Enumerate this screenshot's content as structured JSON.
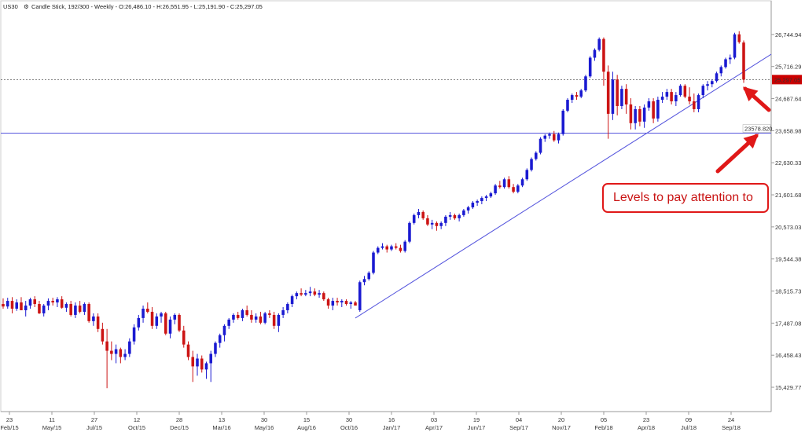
{
  "header": {
    "symbol": "US30",
    "details": "Candle Stick, 192/300 - Weekly - O:26,486.10 - H:26,551.95 - L:25,191.90 - C:25,297.05"
  },
  "colors": {
    "up": "#1a1ad1",
    "down": "#cc1414",
    "line": "#5555dd",
    "price_tag": "#cc0000",
    "callout": "#e01818"
  },
  "chart_data": {
    "type": "candlestick",
    "symbol": "US30",
    "timeframe": "Weekly",
    "ylim": [
      14700,
      27800
    ],
    "y_ticks": [
      "26,744.94",
      "25,716.29",
      "24,687.64",
      "23,658.98",
      "22,630.33",
      "21,601.68",
      "20,573.03",
      "19,544.38",
      "18,515.73",
      "17,487.08",
      "16,458.43",
      "15,429.77"
    ],
    "x_ticks": [
      {
        "day": "23",
        "month": "Feb/15"
      },
      {
        "day": "11",
        "month": "May/15"
      },
      {
        "day": "27",
        "month": "Jul/15"
      },
      {
        "day": "12",
        "month": "Oct/15"
      },
      {
        "day": "28",
        "month": "Dec/15"
      },
      {
        "day": "13",
        "month": "Mar/16"
      },
      {
        "day": "30",
        "month": "May/16"
      },
      {
        "day": "15",
        "month": "Aug/16"
      },
      {
        "day": "30",
        "month": "Oct/16"
      },
      {
        "day": "16",
        "month": "Jan/17"
      },
      {
        "day": "03",
        "month": "Apr/17"
      },
      {
        "day": "19",
        "month": "Jun/17"
      },
      {
        "day": "04",
        "month": "Sep/17"
      },
      {
        "day": "20",
        "month": "Nov/17"
      },
      {
        "day": "05",
        "month": "Feb/18"
      },
      {
        "day": "23",
        "month": "Apr/18"
      },
      {
        "day": "09",
        "month": "Jul/18"
      },
      {
        "day": "24",
        "month": "Sep/18"
      }
    ],
    "last_price": {
      "value": 25297.05,
      "label": "25,297.05"
    },
    "horizontal_level": {
      "value": 23578.82,
      "label": "23578.820"
    },
    "trendline": {
      "from": {
        "x": "Oct/16",
        "y": 17650
      },
      "to": {
        "x": "Sep/18",
        "y": 25550
      }
    },
    "annotation": "Levels to pay attention to",
    "candles": [
      {
        "o": 18100,
        "h": 18280,
        "l": 17950,
        "c": 18020
      },
      {
        "o": 18020,
        "h": 18300,
        "l": 17950,
        "c": 18200
      },
      {
        "o": 18200,
        "h": 18320,
        "l": 17800,
        "c": 17950
      },
      {
        "o": 17950,
        "h": 18250,
        "l": 17880,
        "c": 18150
      },
      {
        "o": 18150,
        "h": 18320,
        "l": 17900,
        "c": 17900
      },
      {
        "o": 17900,
        "h": 18200,
        "l": 17700,
        "c": 18050
      },
      {
        "o": 18050,
        "h": 18300,
        "l": 17950,
        "c": 18250
      },
      {
        "o": 18250,
        "h": 18350,
        "l": 18000,
        "c": 18100
      },
      {
        "o": 18100,
        "h": 18200,
        "l": 17780,
        "c": 17800
      },
      {
        "o": 17800,
        "h": 18100,
        "l": 17700,
        "c": 18050
      },
      {
        "o": 18050,
        "h": 18280,
        "l": 17900,
        "c": 18200
      },
      {
        "o": 18200,
        "h": 18300,
        "l": 18050,
        "c": 18150
      },
      {
        "o": 18150,
        "h": 18320,
        "l": 18000,
        "c": 18250
      },
      {
        "o": 18250,
        "h": 18350,
        "l": 17950,
        "c": 17980
      },
      {
        "o": 17980,
        "h": 18150,
        "l": 17850,
        "c": 18100
      },
      {
        "o": 18100,
        "h": 18200,
        "l": 17700,
        "c": 17750
      },
      {
        "o": 17750,
        "h": 18150,
        "l": 17650,
        "c": 18050
      },
      {
        "o": 18050,
        "h": 18200,
        "l": 17800,
        "c": 17850
      },
      {
        "o": 17850,
        "h": 18150,
        "l": 17750,
        "c": 18100
      },
      {
        "o": 18100,
        "h": 18150,
        "l": 17500,
        "c": 17550
      },
      {
        "o": 17550,
        "h": 17800,
        "l": 17400,
        "c": 17700
      },
      {
        "o": 17700,
        "h": 17800,
        "l": 17200,
        "c": 17300
      },
      {
        "o": 17300,
        "h": 17500,
        "l": 16800,
        "c": 16900
      },
      {
        "o": 16900,
        "h": 17300,
        "l": 15400,
        "c": 16600
      },
      {
        "o": 16600,
        "h": 16900,
        "l": 16300,
        "c": 16500
      },
      {
        "o": 16500,
        "h": 16800,
        "l": 16200,
        "c": 16650
      },
      {
        "o": 16650,
        "h": 16700,
        "l": 16200,
        "c": 16400
      },
      {
        "o": 16400,
        "h": 16650,
        "l": 16300,
        "c": 16500
      },
      {
        "o": 16500,
        "h": 17000,
        "l": 16400,
        "c": 16900
      },
      {
        "o": 16900,
        "h": 17450,
        "l": 16800,
        "c": 17350
      },
      {
        "o": 17350,
        "h": 17750,
        "l": 17250,
        "c": 17650
      },
      {
        "o": 17650,
        "h": 18050,
        "l": 17500,
        "c": 17950
      },
      {
        "o": 17950,
        "h": 18150,
        "l": 17800,
        "c": 17850
      },
      {
        "o": 17850,
        "h": 18000,
        "l": 17300,
        "c": 17400
      },
      {
        "o": 17400,
        "h": 17800,
        "l": 17300,
        "c": 17700
      },
      {
        "o": 17700,
        "h": 17850,
        "l": 17500,
        "c": 17800
      },
      {
        "o": 17800,
        "h": 17850,
        "l": 17100,
        "c": 17150
      },
      {
        "o": 17150,
        "h": 17700,
        "l": 17000,
        "c": 17600
      },
      {
        "o": 17600,
        "h": 17800,
        "l": 17450,
        "c": 17750
      },
      {
        "o": 17750,
        "h": 17800,
        "l": 17200,
        "c": 17250
      },
      {
        "o": 17250,
        "h": 17400,
        "l": 16700,
        "c": 16800
      },
      {
        "o": 16800,
        "h": 16900,
        "l": 16300,
        "c": 16400
      },
      {
        "o": 16400,
        "h": 16600,
        "l": 15600,
        "c": 16100
      },
      {
        "o": 16100,
        "h": 16500,
        "l": 15800,
        "c": 16350
      },
      {
        "o": 16350,
        "h": 16450,
        "l": 15900,
        "c": 16000
      },
      {
        "o": 16000,
        "h": 16250,
        "l": 15700,
        "c": 16200
      },
      {
        "o": 16200,
        "h": 16600,
        "l": 15600,
        "c": 16500
      },
      {
        "o": 16500,
        "h": 16900,
        "l": 16400,
        "c": 16850
      },
      {
        "o": 16850,
        "h": 17150,
        "l": 16700,
        "c": 17100
      },
      {
        "o": 17100,
        "h": 17450,
        "l": 16900,
        "c": 17400
      },
      {
        "o": 17400,
        "h": 17650,
        "l": 17300,
        "c": 17600
      },
      {
        "o": 17600,
        "h": 17800,
        "l": 17500,
        "c": 17750
      },
      {
        "o": 17750,
        "h": 17850,
        "l": 17600,
        "c": 17650
      },
      {
        "o": 17650,
        "h": 17950,
        "l": 17550,
        "c": 17900
      },
      {
        "o": 17900,
        "h": 18050,
        "l": 17700,
        "c": 17750
      },
      {
        "o": 17750,
        "h": 17900,
        "l": 17500,
        "c": 17600
      },
      {
        "o": 17600,
        "h": 17800,
        "l": 17500,
        "c": 17700
      },
      {
        "o": 17700,
        "h": 17850,
        "l": 17450,
        "c": 17500
      },
      {
        "o": 17500,
        "h": 17850,
        "l": 17450,
        "c": 17800
      },
      {
        "o": 17800,
        "h": 17900,
        "l": 17650,
        "c": 17750
      },
      {
        "o": 17750,
        "h": 17850,
        "l": 17300,
        "c": 17400
      },
      {
        "o": 17400,
        "h": 17800,
        "l": 17200,
        "c": 17750
      },
      {
        "o": 17750,
        "h": 18000,
        "l": 17650,
        "c": 17900
      },
      {
        "o": 17900,
        "h": 18150,
        "l": 17800,
        "c": 18100
      },
      {
        "o": 18100,
        "h": 18400,
        "l": 18000,
        "c": 18350
      },
      {
        "o": 18350,
        "h": 18500,
        "l": 18250,
        "c": 18450
      },
      {
        "o": 18450,
        "h": 18600,
        "l": 18350,
        "c": 18400
      },
      {
        "o": 18400,
        "h": 18550,
        "l": 18350,
        "c": 18450
      },
      {
        "o": 18450,
        "h": 18650,
        "l": 18350,
        "c": 18500
      },
      {
        "o": 18500,
        "h": 18600,
        "l": 18350,
        "c": 18400
      },
      {
        "o": 18400,
        "h": 18550,
        "l": 18300,
        "c": 18450
      },
      {
        "o": 18450,
        "h": 18500,
        "l": 18200,
        "c": 18250
      },
      {
        "o": 18250,
        "h": 18300,
        "l": 17950,
        "c": 18050
      },
      {
        "o": 18050,
        "h": 18300,
        "l": 17900,
        "c": 18200
      },
      {
        "o": 18200,
        "h": 18300,
        "l": 18050,
        "c": 18150
      },
      {
        "o": 18150,
        "h": 18250,
        "l": 18000,
        "c": 18200
      },
      {
        "o": 18200,
        "h": 18250,
        "l": 18050,
        "c": 18100
      },
      {
        "o": 18100,
        "h": 18200,
        "l": 17950,
        "c": 18150
      },
      {
        "o": 18150,
        "h": 18200,
        "l": 18050,
        "c": 18050
      },
      {
        "o": 17900,
        "h": 18850,
        "l": 17850,
        "c": 18800
      },
      {
        "o": 18800,
        "h": 19000,
        "l": 18700,
        "c": 18900
      },
      {
        "o": 18900,
        "h": 19150,
        "l": 18850,
        "c": 19100
      },
      {
        "o": 19100,
        "h": 19800,
        "l": 19050,
        "c": 19750
      },
      {
        "o": 19750,
        "h": 19950,
        "l": 19700,
        "c": 19900
      },
      {
        "o": 19900,
        "h": 20050,
        "l": 19850,
        "c": 19950
      },
      {
        "o": 19950,
        "h": 20000,
        "l": 19750,
        "c": 19850
      },
      {
        "o": 19850,
        "h": 20000,
        "l": 19800,
        "c": 19950
      },
      {
        "o": 19950,
        "h": 20050,
        "l": 19850,
        "c": 19900
      },
      {
        "o": 19900,
        "h": 20000,
        "l": 19750,
        "c": 19800
      },
      {
        "o": 19800,
        "h": 20150,
        "l": 19750,
        "c": 20100
      },
      {
        "o": 20100,
        "h": 20750,
        "l": 20050,
        "c": 20700
      },
      {
        "o": 20700,
        "h": 21000,
        "l": 20650,
        "c": 20950
      },
      {
        "o": 20950,
        "h": 21150,
        "l": 20850,
        "c": 21050
      },
      {
        "o": 21050,
        "h": 21100,
        "l": 20800,
        "c": 20850
      },
      {
        "o": 20850,
        "h": 20950,
        "l": 20600,
        "c": 20650
      },
      {
        "o": 20650,
        "h": 20800,
        "l": 20500,
        "c": 20700
      },
      {
        "o": 20700,
        "h": 20750,
        "l": 20450,
        "c": 20600
      },
      {
        "o": 20600,
        "h": 20750,
        "l": 20500,
        "c": 20700
      },
      {
        "o": 20700,
        "h": 20950,
        "l": 20600,
        "c": 20900
      },
      {
        "o": 20900,
        "h": 21050,
        "l": 20800,
        "c": 20950
      },
      {
        "o": 20950,
        "h": 21000,
        "l": 20800,
        "c": 20850
      },
      {
        "o": 20850,
        "h": 21000,
        "l": 20750,
        "c": 20950
      },
      {
        "o": 20950,
        "h": 21150,
        "l": 20900,
        "c": 21100
      },
      {
        "o": 21100,
        "h": 21250,
        "l": 21000,
        "c": 21200
      },
      {
        "o": 21200,
        "h": 21400,
        "l": 21150,
        "c": 21350
      },
      {
        "o": 21350,
        "h": 21450,
        "l": 21250,
        "c": 21400
      },
      {
        "o": 21400,
        "h": 21550,
        "l": 21300,
        "c": 21500
      },
      {
        "o": 21500,
        "h": 21600,
        "l": 21400,
        "c": 21550
      },
      {
        "o": 21550,
        "h": 21700,
        "l": 21500,
        "c": 21650
      },
      {
        "o": 21650,
        "h": 21950,
        "l": 21600,
        "c": 21900
      },
      {
        "o": 21900,
        "h": 22050,
        "l": 21800,
        "c": 21850
      },
      {
        "o": 21850,
        "h": 22150,
        "l": 21800,
        "c": 22100
      },
      {
        "o": 22100,
        "h": 22200,
        "l": 21800,
        "c": 21850
      },
      {
        "o": 21850,
        "h": 21950,
        "l": 21650,
        "c": 21700
      },
      {
        "o": 21700,
        "h": 21950,
        "l": 21650,
        "c": 21900
      },
      {
        "o": 21900,
        "h": 22150,
        "l": 21850,
        "c": 22100
      },
      {
        "o": 22100,
        "h": 22450,
        "l": 22050,
        "c": 22400
      },
      {
        "o": 22400,
        "h": 22800,
        "l": 22350,
        "c": 22750
      },
      {
        "o": 22750,
        "h": 23000,
        "l": 22700,
        "c": 22950
      },
      {
        "o": 22950,
        "h": 23450,
        "l": 22900,
        "c": 23400
      },
      {
        "o": 23400,
        "h": 23550,
        "l": 23300,
        "c": 23500
      },
      {
        "o": 23500,
        "h": 23600,
        "l": 23400,
        "c": 23550
      },
      {
        "o": 23550,
        "h": 23650,
        "l": 23300,
        "c": 23350
      },
      {
        "o": 23350,
        "h": 23600,
        "l": 23250,
        "c": 23550
      },
      {
        "o": 23550,
        "h": 24350,
        "l": 23500,
        "c": 24300
      },
      {
        "o": 24300,
        "h": 24700,
        "l": 24250,
        "c": 24650
      },
      {
        "o": 24650,
        "h": 24850,
        "l": 24550,
        "c": 24800
      },
      {
        "o": 24800,
        "h": 24900,
        "l": 24650,
        "c": 24750
      },
      {
        "o": 24750,
        "h": 25000,
        "l": 24700,
        "c": 24950
      },
      {
        "o": 24950,
        "h": 25450,
        "l": 24900,
        "c": 25400
      },
      {
        "o": 25400,
        "h": 26050,
        "l": 25350,
        "c": 26000
      },
      {
        "o": 26000,
        "h": 26300,
        "l": 25900,
        "c": 26250
      },
      {
        "o": 26250,
        "h": 26650,
        "l": 26200,
        "c": 26600
      },
      {
        "o": 26600,
        "h": 26650,
        "l": 25100,
        "c": 25550
      },
      {
        "o": 25550,
        "h": 25750,
        "l": 23400,
        "c": 24200
      },
      {
        "o": 24200,
        "h": 25550,
        "l": 24000,
        "c": 25300
      },
      {
        "o": 25300,
        "h": 25450,
        "l": 24150,
        "c": 24450
      },
      {
        "o": 24450,
        "h": 25100,
        "l": 24350,
        "c": 25000
      },
      {
        "o": 25000,
        "h": 25150,
        "l": 24200,
        "c": 24500
      },
      {
        "o": 24500,
        "h": 24700,
        "l": 23700,
        "c": 23900
      },
      {
        "o": 23900,
        "h": 24450,
        "l": 23700,
        "c": 24350
      },
      {
        "o": 24350,
        "h": 24450,
        "l": 23800,
        "c": 23950
      },
      {
        "o": 23950,
        "h": 24500,
        "l": 23750,
        "c": 24400
      },
      {
        "o": 24400,
        "h": 24700,
        "l": 24300,
        "c": 24600
      },
      {
        "o": 24600,
        "h": 24700,
        "l": 23900,
        "c": 24050
      },
      {
        "o": 24050,
        "h": 24750,
        "l": 23950,
        "c": 24650
      },
      {
        "o": 24650,
        "h": 24900,
        "l": 24550,
        "c": 24750
      },
      {
        "o": 24750,
        "h": 25000,
        "l": 24650,
        "c": 24900
      },
      {
        "o": 24900,
        "h": 25000,
        "l": 24500,
        "c": 24600
      },
      {
        "o": 24600,
        "h": 24900,
        "l": 24450,
        "c": 24800
      },
      {
        "o": 24800,
        "h": 25150,
        "l": 24750,
        "c": 25100
      },
      {
        "o": 25100,
        "h": 25150,
        "l": 24700,
        "c": 24750
      },
      {
        "o": 24750,
        "h": 25050,
        "l": 24500,
        "c": 24600
      },
      {
        "o": 24600,
        "h": 24850,
        "l": 24250,
        "c": 24350
      },
      {
        "o": 24350,
        "h": 24850,
        "l": 24250,
        "c": 24800
      },
      {
        "o": 24800,
        "h": 25150,
        "l": 24700,
        "c": 25100
      },
      {
        "o": 25100,
        "h": 25250,
        "l": 24950,
        "c": 25150
      },
      {
        "o": 25150,
        "h": 25300,
        "l": 25050,
        "c": 25250
      },
      {
        "o": 25250,
        "h": 25550,
        "l": 25200,
        "c": 25500
      },
      {
        "o": 25500,
        "h": 25750,
        "l": 25400,
        "c": 25700
      },
      {
        "o": 25700,
        "h": 26000,
        "l": 25650,
        "c": 25950
      },
      {
        "o": 25950,
        "h": 26100,
        "l": 25800,
        "c": 26000
      },
      {
        "o": 26000,
        "h": 26800,
        "l": 25950,
        "c": 26750
      },
      {
        "o": 26750,
        "h": 26850,
        "l": 26450,
        "c": 26500
      },
      {
        "o": 26486.1,
        "h": 26551.95,
        "l": 25191.9,
        "c": 25297.05
      }
    ]
  }
}
